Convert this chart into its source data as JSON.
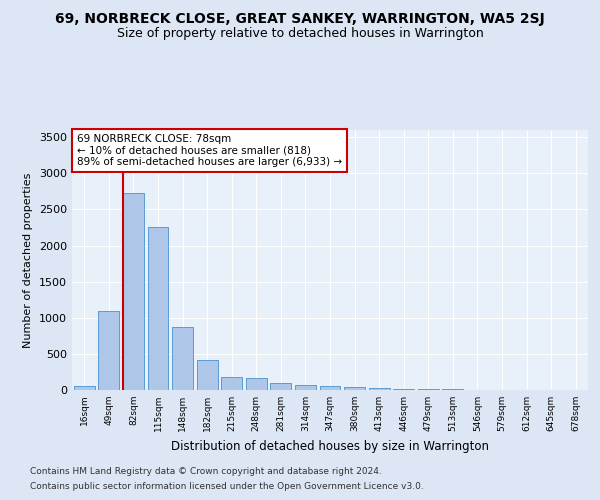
{
  "title": "69, NORBRECK CLOSE, GREAT SANKEY, WARRINGTON, WA5 2SJ",
  "subtitle": "Size of property relative to detached houses in Warrington",
  "xlabel": "Distribution of detached houses by size in Warrington",
  "ylabel": "Number of detached properties",
  "footnote1": "Contains HM Land Registry data © Crown copyright and database right 2024.",
  "footnote2": "Contains public sector information licensed under the Open Government Licence v3.0.",
  "annotation_line1": "69 NORBRECK CLOSE: 78sqm",
  "annotation_line2": "← 10% of detached houses are smaller (818)",
  "annotation_line3": "89% of semi-detached houses are larger (6,933) →",
  "bar_labels": [
    "16sqm",
    "49sqm",
    "82sqm",
    "115sqm",
    "148sqm",
    "182sqm",
    "215sqm",
    "248sqm",
    "281sqm",
    "314sqm",
    "347sqm",
    "380sqm",
    "413sqm",
    "446sqm",
    "479sqm",
    "513sqm",
    "546sqm",
    "579sqm",
    "612sqm",
    "645sqm",
    "678sqm"
  ],
  "bar_values": [
    50,
    1100,
    2730,
    2260,
    870,
    415,
    175,
    170,
    95,
    65,
    55,
    40,
    30,
    20,
    10,
    8,
    6,
    5,
    5,
    4,
    3
  ],
  "bar_color": "#aec6e8",
  "bar_edge_color": "#5b9bd5",
  "red_line_bar_index": 2,
  "red_line_color": "#cc0000",
  "ylim": [
    0,
    3600
  ],
  "yticks": [
    0,
    500,
    1000,
    1500,
    2000,
    2500,
    3000,
    3500
  ],
  "bg_color": "#dce6f5",
  "plot_bg_color": "#e8f0fa",
  "title_fontsize": 10,
  "subtitle_fontsize": 9,
  "footnote_fontsize": 6.5
}
